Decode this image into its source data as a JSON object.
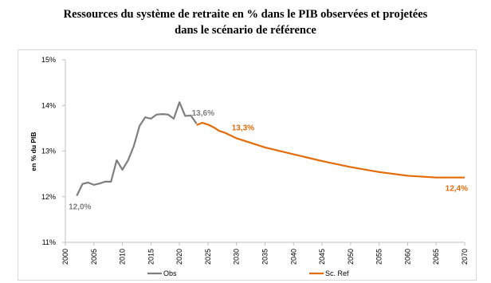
{
  "chart_data": {
    "type": "line",
    "title": [
      "Ressources du système de retraite en % dans le PIB observées et projetées",
      "dans le scénario de référence"
    ],
    "ylabel": "en % du PIB",
    "ylim": [
      11,
      15
    ],
    "yticks": [
      {
        "value": 11,
        "label": "11%"
      },
      {
        "value": 12,
        "label": "12%"
      },
      {
        "value": 13,
        "label": "13%"
      },
      {
        "value": 14,
        "label": "14%"
      },
      {
        "value": 15,
        "label": "15%"
      }
    ],
    "xlim": [
      2000,
      2070
    ],
    "xticks": [
      2000,
      2005,
      2010,
      2015,
      2020,
      2025,
      2030,
      2035,
      2040,
      2045,
      2050,
      2055,
      2060,
      2065,
      2070
    ],
    "grid": false,
    "legend": "bottom",
    "series": [
      {
        "name": "Obs",
        "color": "#7f7f7f",
        "x": [
          2002,
          2003,
          2004,
          2005,
          2006,
          2007,
          2008,
          2009,
          2010,
          2011,
          2012,
          2013,
          2014,
          2015,
          2016,
          2017,
          2018,
          2019,
          2020,
          2021,
          2022,
          2023
        ],
        "values": [
          12.02,
          12.28,
          12.31,
          12.26,
          12.29,
          12.33,
          12.33,
          12.8,
          12.59,
          12.8,
          13.11,
          13.55,
          13.74,
          13.71,
          13.8,
          13.81,
          13.8,
          13.71,
          14.07,
          13.77,
          13.78,
          13.6
        ],
        "value_labels": [
          "12,0%",
          null,
          null,
          null,
          null,
          null,
          null,
          null,
          null,
          null,
          null,
          null,
          null,
          null,
          null,
          null,
          null,
          null,
          null,
          null,
          null,
          "13,6%"
        ]
      },
      {
        "name": "Sc. Ref",
        "color": "#e36c09",
        "x": [
          2023,
          2024,
          2025,
          2026,
          2027,
          2028,
          2029,
          2030,
          2035,
          2040,
          2045,
          2050,
          2055,
          2060,
          2065,
          2070
        ],
        "values": [
          13.57,
          13.62,
          13.58,
          13.52,
          13.44,
          13.4,
          13.34,
          13.28,
          13.08,
          12.93,
          12.78,
          12.65,
          12.54,
          12.46,
          12.42,
          12.42
        ],
        "value_labels": [
          null,
          null,
          null,
          null,
          null,
          null,
          null,
          "13,3%",
          null,
          null,
          null,
          null,
          null,
          null,
          null,
          "12,4%"
        ]
      }
    ]
  }
}
